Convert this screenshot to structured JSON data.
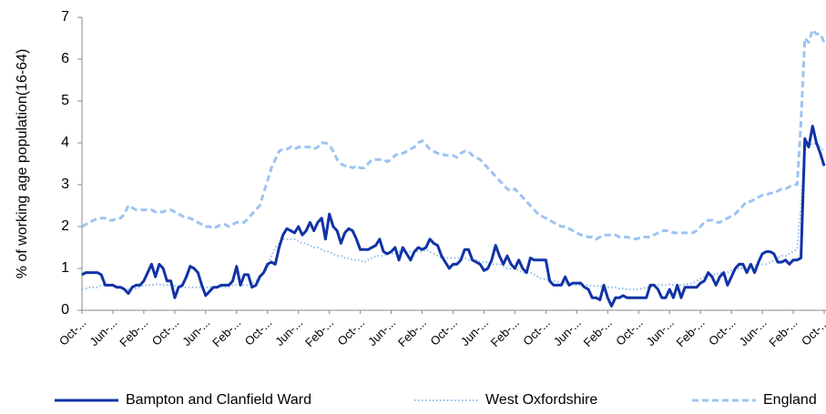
{
  "chart_data": {
    "type": "line",
    "y_label": "% of working age population(16-64)",
    "categories": [
      "Oct-...",
      null,
      null,
      null,
      null,
      null,
      null,
      null,
      "Jun-...",
      null,
      null,
      null,
      null,
      null,
      null,
      null,
      "Feb-...",
      null,
      null,
      null,
      null,
      null,
      null,
      null,
      "Oct-...",
      null,
      null,
      null,
      null,
      null,
      null,
      null,
      "Jun-...",
      null,
      null,
      null,
      null,
      null,
      null,
      null,
      "Feb-...",
      null,
      null,
      null,
      null,
      null,
      null,
      null,
      "Oct-...",
      null,
      null,
      null,
      null,
      null,
      null,
      null,
      "Jun-...",
      null,
      null,
      null,
      null,
      null,
      null,
      null,
      "Feb-...",
      null,
      null,
      null,
      null,
      null,
      null,
      null,
      "Oct-...",
      null,
      null,
      null,
      null,
      null,
      null,
      null,
      "Jun-...",
      null,
      null,
      null,
      null,
      null,
      null,
      null,
      "Feb-...",
      null,
      null,
      null,
      null,
      null,
      null,
      null,
      "Oct-...",
      null,
      null,
      null,
      null,
      null,
      null,
      null,
      "Jun-...",
      null,
      null,
      null,
      null,
      null,
      null,
      null,
      "Feb-...",
      null,
      null,
      null,
      null,
      null,
      null,
      null,
      "Oct-...",
      null,
      null,
      null,
      null,
      null,
      null,
      null,
      "Jun-...",
      null,
      null,
      null,
      null,
      null,
      null,
      null,
      "Feb-...",
      null,
      null,
      null,
      null,
      null,
      null,
      null,
      "Oct-...",
      null,
      null,
      null,
      null,
      null,
      null,
      null,
      "Jun-...",
      null,
      null,
      null,
      null,
      null,
      null,
      null,
      "Feb-...",
      null,
      null,
      null,
      null,
      null,
      null,
      null,
      "Oct-...",
      null,
      null,
      null,
      null,
      null,
      null,
      null,
      "Jun-...",
      null,
      null,
      null,
      null,
      null,
      null,
      null,
      "Feb-...",
      null,
      null,
      null,
      null,
      null,
      null,
      null,
      "Oct-..."
    ],
    "series": [
      {
        "name": "Bampton and Clanfield Ward",
        "color": "#1133a6",
        "style": "solid",
        "values": [
          0.85,
          0.9,
          0.9,
          0.9,
          0.9,
          0.85,
          0.6,
          0.6,
          0.6,
          0.55,
          0.55,
          0.5,
          0.4,
          0.55,
          0.6,
          0.6,
          0.7,
          0.9,
          1.1,
          0.8,
          1.1,
          1.0,
          0.7,
          0.7,
          0.3,
          0.55,
          0.6,
          0.8,
          1.05,
          1.0,
          0.9,
          0.6,
          0.35,
          0.45,
          0.55,
          0.55,
          0.6,
          0.6,
          0.6,
          0.7,
          1.05,
          0.6,
          0.85,
          0.85,
          0.55,
          0.6,
          0.8,
          0.9,
          1.1,
          1.15,
          1.1,
          1.5,
          1.8,
          1.95,
          1.9,
          1.85,
          2.0,
          1.8,
          1.9,
          2.1,
          1.9,
          2.1,
          2.2,
          1.7,
          2.3,
          2.0,
          1.9,
          1.6,
          1.85,
          1.95,
          1.9,
          1.7,
          1.45,
          1.45,
          1.45,
          1.5,
          1.55,
          1.7,
          1.4,
          1.35,
          1.4,
          1.5,
          1.2,
          1.5,
          1.35,
          1.2,
          1.4,
          1.5,
          1.45,
          1.5,
          1.7,
          1.6,
          1.55,
          1.3,
          1.15,
          1.0,
          1.1,
          1.1,
          1.2,
          1.45,
          1.45,
          1.2,
          1.15,
          1.1,
          0.95,
          1.0,
          1.2,
          1.55,
          1.3,
          1.1,
          1.3,
          1.1,
          1.0,
          1.2,
          1.0,
          0.9,
          1.25,
          1.2,
          1.2,
          1.2,
          1.2,
          0.7,
          0.6,
          0.6,
          0.6,
          0.8,
          0.6,
          0.65,
          0.65,
          0.65,
          0.55,
          0.5,
          0.3,
          0.3,
          0.25,
          0.6,
          0.3,
          0.1,
          0.3,
          0.3,
          0.35,
          0.3,
          0.3,
          0.3,
          0.3,
          0.3,
          0.3,
          0.6,
          0.6,
          0.5,
          0.3,
          0.3,
          0.5,
          0.3,
          0.6,
          0.3,
          0.55,
          0.55,
          0.55,
          0.55,
          0.65,
          0.7,
          0.9,
          0.8,
          0.6,
          0.8,
          0.9,
          0.6,
          0.8,
          1.0,
          1.1,
          1.1,
          0.9,
          1.1,
          0.9,
          1.15,
          1.35,
          1.4,
          1.4,
          1.35,
          1.15,
          1.15,
          1.2,
          1.1,
          1.2,
          1.2,
          1.25,
          4.1,
          3.9,
          4.4,
          4.0,
          3.75,
          3.45
        ]
      },
      {
        "name": "West Oxfordshire",
        "color": "#8fbbea",
        "style": "dotted",
        "values": [
          0.5,
          0.52,
          0.55,
          0.55,
          0.55,
          0.6,
          0.6,
          0.6,
          0.6,
          0.58,
          0.55,
          0.5,
          0.5,
          0.5,
          0.52,
          0.55,
          0.6,
          0.6,
          0.6,
          0.62,
          0.62,
          0.6,
          0.6,
          0.6,
          0.58,
          0.55,
          0.55,
          0.55,
          0.55,
          0.55,
          0.55,
          0.55,
          0.55,
          0.55,
          0.55,
          0.55,
          0.55,
          0.55,
          0.55,
          0.6,
          0.6,
          0.6,
          0.6,
          0.6,
          0.65,
          0.7,
          0.8,
          0.9,
          1.0,
          1.3,
          1.5,
          1.6,
          1.7,
          1.7,
          1.7,
          1.7,
          1.65,
          1.6,
          1.6,
          1.55,
          1.5,
          1.5,
          1.45,
          1.4,
          1.4,
          1.35,
          1.3,
          1.3,
          1.25,
          1.25,
          1.2,
          1.2,
          1.2,
          1.15,
          1.2,
          1.25,
          1.3,
          1.3,
          1.3,
          1.35,
          1.35,
          1.35,
          1.4,
          1.4,
          1.4,
          1.4,
          1.4,
          1.4,
          1.4,
          1.45,
          1.4,
          1.35,
          1.3,
          1.25,
          1.25,
          1.25,
          1.25,
          1.25,
          1.25,
          1.25,
          1.2,
          1.2,
          1.2,
          1.15,
          1.15,
          1.15,
          1.1,
          1.1,
          1.1,
          1.05,
          1.0,
          1.0,
          1.0,
          0.95,
          0.9,
          0.9,
          0.9,
          0.85,
          0.8,
          0.75,
          0.75,
          0.7,
          0.7,
          0.68,
          0.65,
          0.65,
          0.65,
          0.62,
          0.6,
          0.6,
          0.6,
          0.6,
          0.58,
          0.58,
          0.58,
          0.55,
          0.55,
          0.55,
          0.55,
          0.52,
          0.52,
          0.5,
          0.5,
          0.5,
          0.5,
          0.52,
          0.55,
          0.55,
          0.58,
          0.6,
          0.6,
          0.6,
          0.62,
          0.6,
          0.6,
          0.6,
          0.62,
          0.62,
          0.65,
          0.7,
          0.75,
          0.8,
          0.8,
          0.85,
          0.85,
          0.9,
          0.9,
          0.9,
          0.95,
          0.95,
          1.0,
          1.0,
          1.0,
          1.05,
          1.05,
          1.1,
          1.1,
          1.1,
          1.15,
          1.2,
          1.25,
          1.3,
          1.3,
          1.35,
          1.4,
          1.45,
          2.5,
          3.8,
          4.0,
          3.95,
          4.0,
          3.9,
          3.8
        ]
      },
      {
        "name": "England",
        "color": "#9cc4f2",
        "style": "dashed",
        "values": [
          2.0,
          2.05,
          2.1,
          2.15,
          2.2,
          2.2,
          2.2,
          2.15,
          2.15,
          2.2,
          2.2,
          2.3,
          2.5,
          2.45,
          2.4,
          2.4,
          2.4,
          2.4,
          2.4,
          2.35,
          2.35,
          2.35,
          2.4,
          2.4,
          2.35,
          2.3,
          2.25,
          2.2,
          2.2,
          2.15,
          2.1,
          2.05,
          2.0,
          2.0,
          1.95,
          2.0,
          2.05,
          2.05,
          2.0,
          2.05,
          2.1,
          2.1,
          2.1,
          2.2,
          2.3,
          2.4,
          2.5,
          2.8,
          3.1,
          3.4,
          3.6,
          3.8,
          3.85,
          3.85,
          3.9,
          3.85,
          3.9,
          3.9,
          3.9,
          3.9,
          3.85,
          3.9,
          4.0,
          4.0,
          3.95,
          3.8,
          3.6,
          3.5,
          3.45,
          3.45,
          3.4,
          3.45,
          3.4,
          3.4,
          3.5,
          3.6,
          3.6,
          3.6,
          3.6,
          3.55,
          3.6,
          3.7,
          3.75,
          3.75,
          3.8,
          3.85,
          3.9,
          4.0,
          4.05,
          3.95,
          3.85,
          3.8,
          3.75,
          3.75,
          3.7,
          3.7,
          3.7,
          3.65,
          3.75,
          3.8,
          3.8,
          3.7,
          3.65,
          3.6,
          3.5,
          3.4,
          3.3,
          3.2,
          3.1,
          3.0,
          2.9,
          2.85,
          2.9,
          2.8,
          2.7,
          2.6,
          2.5,
          2.4,
          2.3,
          2.25,
          2.2,
          2.15,
          2.1,
          2.05,
          2.0,
          2.0,
          1.95,
          1.9,
          1.85,
          1.8,
          1.8,
          1.75,
          1.75,
          1.7,
          1.75,
          1.8,
          1.8,
          1.8,
          1.8,
          1.75,
          1.75,
          1.75,
          1.72,
          1.7,
          1.72,
          1.75,
          1.75,
          1.75,
          1.8,
          1.85,
          1.9,
          1.9,
          1.9,
          1.85,
          1.85,
          1.85,
          1.85,
          1.85,
          1.85,
          1.9,
          2.0,
          2.1,
          2.15,
          2.15,
          2.1,
          2.1,
          2.15,
          2.2,
          2.25,
          2.3,
          2.4,
          2.5,
          2.6,
          2.6,
          2.65,
          2.7,
          2.75,
          2.75,
          2.8,
          2.8,
          2.85,
          2.9,
          2.9,
          2.95,
          3.0,
          3.0,
          4.5,
          6.5,
          6.4,
          6.7,
          6.6,
          6.6,
          6.4
        ]
      }
    ],
    "ylim": [
      0,
      7
    ],
    "yticks": [
      0,
      1,
      2,
      3,
      4,
      5,
      6,
      7
    ],
    "grid": false,
    "legend": "bottom"
  }
}
